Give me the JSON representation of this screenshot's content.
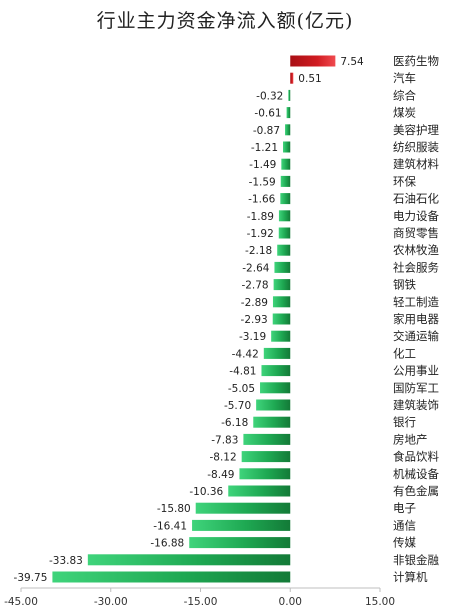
{
  "chart_data": {
    "type": "bar",
    "orientation": "horizontal",
    "title": "行业主力资金净流入额(亿元)",
    "xlabel": "",
    "ylabel": "",
    "xlim": [
      -45,
      15
    ],
    "x_ticks": [
      -45,
      -30,
      -15,
      0,
      15
    ],
    "x_tick_labels": [
      "-45.00",
      "-30.00",
      "-15.00",
      "0.00",
      "15.00"
    ],
    "grid": false,
    "legend": false,
    "positive_color": "#c8161d",
    "negative_color": "#1b9a4a",
    "categories": [
      "医药生物",
      "汽车",
      "综合",
      "煤炭",
      "美容护理",
      "纺织服装",
      "建筑材料",
      "环保",
      "石油石化",
      "电力设备",
      "商贸零售",
      "农林牧渔",
      "社会服务",
      "钢铁",
      "轻工制造",
      "家用电器",
      "交通运输",
      "化工",
      "公用事业",
      "国防军工",
      "建筑装饰",
      "银行",
      "房地产",
      "食品饮料",
      "机械设备",
      "有色金属",
      "电子",
      "通信",
      "传媒",
      "非银金融",
      "计算机"
    ],
    "values": [
      7.54,
      0.51,
      -0.32,
      -0.61,
      -0.87,
      -1.21,
      -1.49,
      -1.59,
      -1.66,
      -1.89,
      -1.92,
      -2.18,
      -2.64,
      -2.78,
      -2.89,
      -2.93,
      -3.19,
      -4.42,
      -4.81,
      -5.05,
      -5.7,
      -6.18,
      -7.83,
      -8.12,
      -8.49,
      -10.36,
      -15.8,
      -16.41,
      -16.88,
      -33.83,
      -39.75
    ],
    "value_labels": [
      "7.54",
      "0.51",
      "-0.32",
      "-0.61",
      "-0.87",
      "-1.21",
      "-1.49",
      "-1.59",
      "-1.66",
      "-1.89",
      "-1.92",
      "-2.18",
      "-2.64",
      "-2.78",
      "-2.89",
      "-2.93",
      "-3.19",
      "-4.42",
      "-4.81",
      "-5.05",
      "-5.70",
      "-6.18",
      "-7.83",
      "-8.12",
      "-8.49",
      "-10.36",
      "-15.80",
      "-16.41",
      "-16.88",
      "-33.83",
      "-39.75"
    ]
  }
}
